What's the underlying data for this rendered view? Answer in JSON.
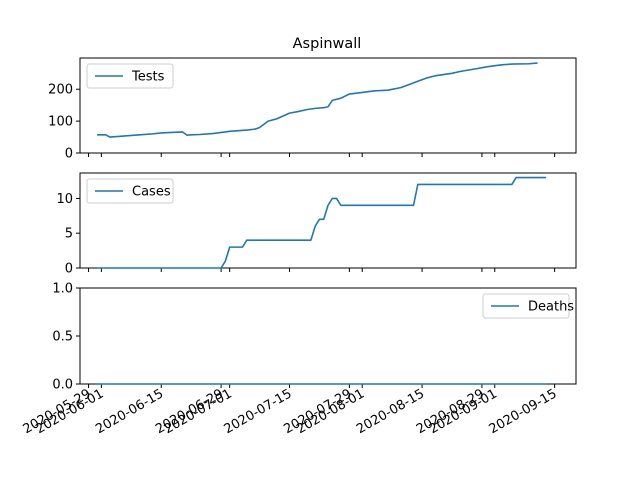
{
  "chart_data": {
    "title": "Aspinwall",
    "type": "line",
    "line_color": "#1f77b4",
    "x_range": [
      "2020-05-27",
      "2020-09-20"
    ],
    "x_tick_labels": [
      "2020-05-29",
      "2020-06-01",
      "2020-06-15",
      "2020-06-29",
      "2020-07-01",
      "2020-07-15",
      "2020-07-29",
      "2020-08-01",
      "2020-08-15",
      "2020-08-29",
      "2020-09-01",
      "2020-09-15"
    ],
    "panels": [
      {
        "name": "Tests",
        "legend_loc": "upper left",
        "ylim": [
          0,
          298
        ],
        "yticks": [
          "0",
          "100",
          "200"
        ],
        "x": [
          "2020-05-31",
          "2020-06-02",
          "2020-06-03",
          "2020-06-05",
          "2020-06-08",
          "2020-06-10",
          "2020-06-13",
          "2020-06-15",
          "2020-06-18",
          "2020-06-20",
          "2020-06-21",
          "2020-06-22",
          "2020-06-24",
          "2020-06-27",
          "2020-06-30",
          "2020-07-01",
          "2020-07-03",
          "2020-07-05",
          "2020-07-07",
          "2020-07-08",
          "2020-07-10",
          "2020-07-12",
          "2020-07-15",
          "2020-07-17",
          "2020-07-19",
          "2020-07-21",
          "2020-07-23",
          "2020-07-24",
          "2020-07-25",
          "2020-07-27",
          "2020-07-29",
          "2020-08-01",
          "2020-08-04",
          "2020-08-07",
          "2020-08-10",
          "2020-08-12",
          "2020-08-14",
          "2020-08-16",
          "2020-08-18",
          "2020-08-20",
          "2020-08-22",
          "2020-08-24",
          "2020-08-28",
          "2020-08-30",
          "2020-09-01",
          "2020-09-03",
          "2020-09-05",
          "2020-09-09",
          "2020-09-11"
        ],
        "values": [
          57,
          57,
          50,
          52,
          55,
          57,
          60,
          63,
          65,
          66,
          56,
          57,
          58,
          61,
          66,
          68,
          70,
          72,
          75,
          80,
          100,
          107,
          125,
          130,
          136,
          140,
          142,
          145,
          165,
          172,
          185,
          190,
          195,
          197,
          205,
          215,
          225,
          235,
          242,
          246,
          250,
          256,
          265,
          270,
          274,
          277,
          279,
          280,
          282
        ]
      },
      {
        "name": "Cases",
        "legend_loc": "upper left",
        "ylim": [
          0,
          13.65
        ],
        "yticks": [
          "0",
          "5",
          "10"
        ],
        "x": [
          "2020-05-31",
          "2020-06-29",
          "2020-06-30",
          "2020-07-01",
          "2020-07-04",
          "2020-07-05",
          "2020-07-20",
          "2020-07-21",
          "2020-07-22",
          "2020-07-23",
          "2020-07-24",
          "2020-07-25",
          "2020-07-26",
          "2020-07-27",
          "2020-07-28",
          "2020-08-13",
          "2020-08-14",
          "2020-09-05",
          "2020-09-06",
          "2020-09-13"
        ],
        "values": [
          0,
          0,
          1,
          3,
          3,
          4,
          4,
          6,
          7,
          7,
          9,
          10,
          10,
          9,
          9,
          9,
          12,
          12,
          13,
          13
        ]
      },
      {
        "name": "Deaths",
        "legend_loc": "upper right",
        "ylim": [
          0,
          1.0
        ],
        "yticks": [
          "0.0",
          "0.5",
          "1.0"
        ],
        "x": [
          "2020-05-31",
          "2020-09-13"
        ],
        "values": [
          0,
          0
        ]
      }
    ]
  }
}
